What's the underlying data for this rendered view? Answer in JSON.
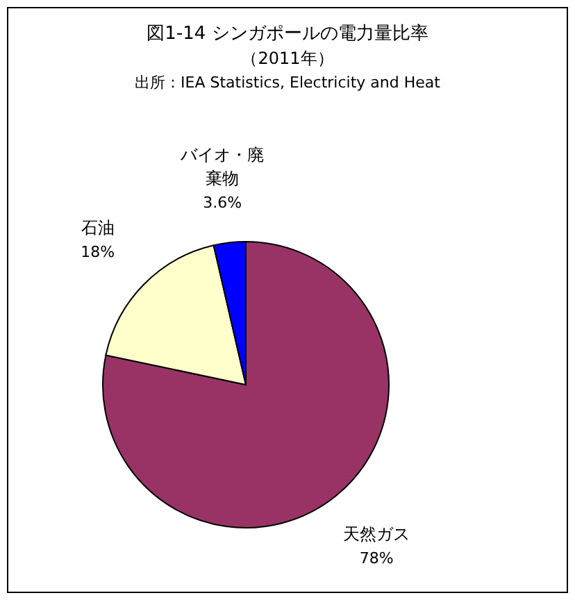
{
  "chart_data": {
    "type": "pie",
    "title": "図1-14  シンガポールの電力量比率",
    "subtitle": "（2011年）",
    "annotations": [
      "出所：IEA Statistics, Electricity and Heat"
    ],
    "categories": [
      "天然ガス",
      "石油",
      "バイオ・廃棄物"
    ],
    "values": [
      78,
      18,
      3.6
    ],
    "value_labels": [
      "78%",
      "18%",
      "3.6%"
    ],
    "colors": [
      "#993366",
      "#ffffcc",
      "#0000ff"
    ]
  }
}
